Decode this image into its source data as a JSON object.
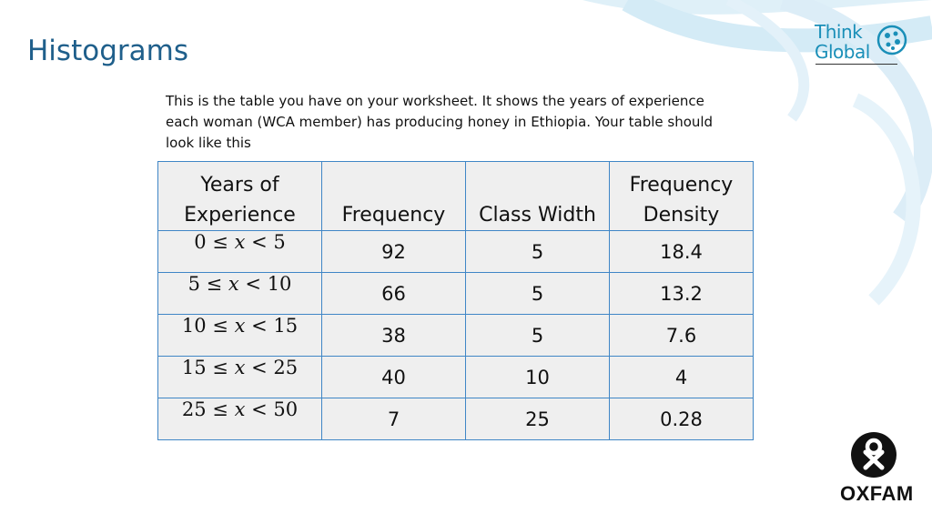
{
  "slide": {
    "title": "Histograms",
    "intro_lines": [
      "This is the table you have on your worksheet. It shows the years of experience",
      "each woman (WCA member) has producing honey in Ethiopia. Your table should",
      "look like this"
    ]
  },
  "table": {
    "headers": [
      {
        "line1": "Years of",
        "line2": "Experience"
      },
      {
        "line1": "",
        "line2": "Frequency"
      },
      {
        "line1": "",
        "line2": "Class Width"
      },
      {
        "line1": "Frequency",
        "line2": "Density"
      }
    ],
    "rows": [
      {
        "low": "0",
        "high": "5",
        "frequency": "92",
        "width": "5",
        "density": "18.4"
      },
      {
        "low": "5",
        "high": "10",
        "frequency": "66",
        "width": "5",
        "density": "13.2"
      },
      {
        "low": "10",
        "high": "15",
        "frequency": "38",
        "width": "5",
        "density": "7.6"
      },
      {
        "low": "15",
        "high": "25",
        "frequency": "40",
        "width": "10",
        "density": "4"
      },
      {
        "low": "25",
        "high": "50",
        "frequency": "7",
        "width": "25",
        "density": "0.28"
      }
    ]
  },
  "logos": {
    "think_global_line1": "Think",
    "think_global_line2": "Global",
    "oxfam": "OXFAM"
  },
  "colors": {
    "title": "#1f5f8b",
    "table_border": "#3f86c6",
    "table_fill": "#efefef",
    "swirl": "#cfe8f4",
    "think_global": "#1a8fb8"
  }
}
